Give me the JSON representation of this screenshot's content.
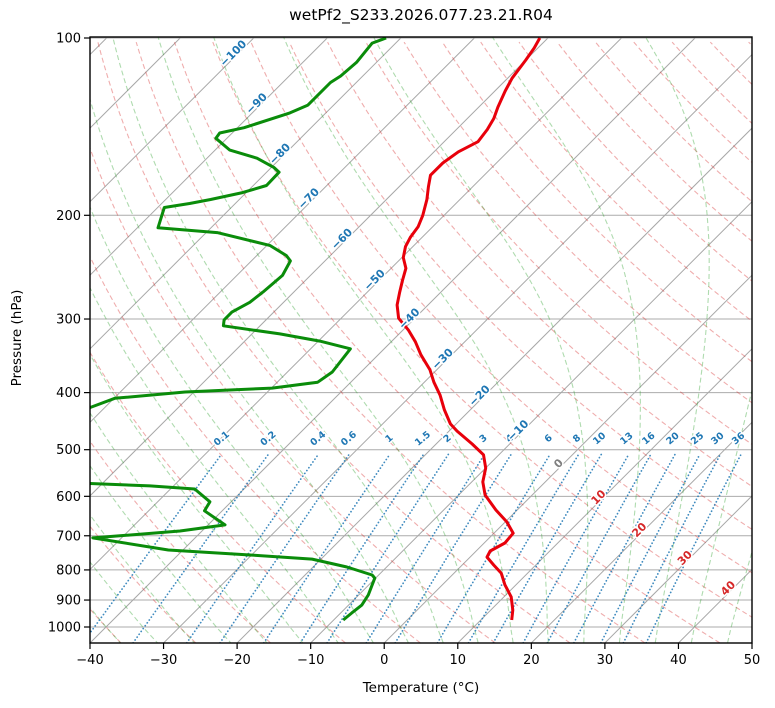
{
  "title": "wetPf2_S233.2026.077.23.21.R04",
  "axes": {
    "x_label": "Temperature (°C)",
    "y_label": "Pressure (hPa)",
    "x_ticks": [
      -40,
      -30,
      -20,
      -10,
      0,
      10,
      20,
      30,
      40,
      50
    ],
    "y_ticks": [
      100,
      200,
      300,
      400,
      500,
      600,
      700,
      800,
      900,
      1000
    ]
  },
  "colors": {
    "temperature_line": "#e8000b",
    "dewpoint_line": "#0a8c0a",
    "isotherm": "#a8a8a8",
    "pressure_grid": "#ababab",
    "dry_adiabat": "rgba(214,39,40,0.38)",
    "moist_adiabat": "rgba(44,160,44,0.38)",
    "mixing_ratio": "rgba(31,119,180,0.85)",
    "label_negative": "#1f77b4",
    "label_zero": "#7f7f7f",
    "label_positive": "#d62728",
    "spine": "#000000"
  },
  "chart_data": {
    "type": "skewt-logp",
    "skew_deg": 45,
    "pressure_range_hpa": [
      100,
      1064
    ],
    "temperature_range_c": [
      -40,
      50
    ],
    "isotherms_c": {
      "start": -160,
      "end": 50,
      "step": 10
    },
    "dry_adiabats_theta_c": {
      "start": -40,
      "end": 200,
      "step": 10
    },
    "moist_adiabats_t0_c": {
      "start": -40,
      "end": 45,
      "step": 5
    },
    "mixing_ratio_g_kg": [
      0.1,
      0.2,
      0.4,
      0.6,
      1,
      1.5,
      2,
      3,
      4,
      6,
      8,
      10,
      13,
      16,
      20,
      25,
      30,
      36
    ],
    "mixing_ratio_label_pressure": 483,
    "isotherm_labels": [
      {
        "t": -100,
        "p": 106
      },
      {
        "t": -90,
        "p": 129
      },
      {
        "t": -80,
        "p": 157
      },
      {
        "t": -70,
        "p": 187
      },
      {
        "t": -60,
        "p": 219
      },
      {
        "t": -50,
        "p": 257
      },
      {
        "t": -40,
        "p": 299
      },
      {
        "t": -30,
        "p": 350
      },
      {
        "t": -20,
        "p": 404
      },
      {
        "t": -10,
        "p": 463
      },
      {
        "t": 0,
        "p": 527
      },
      {
        "t": 10,
        "p": 601
      },
      {
        "t": 20,
        "p": 683
      },
      {
        "t": 30,
        "p": 762
      },
      {
        "t": 40,
        "p": 858
      }
    ],
    "temperature_profile_p_t": [
      [
        100,
        -61.1
      ],
      [
        104,
        -60.5
      ],
      [
        109,
        -60.0
      ],
      [
        117,
        -59.4
      ],
      [
        123,
        -58.6
      ],
      [
        131,
        -57.4
      ],
      [
        137,
        -56.4
      ],
      [
        143,
        -55.8
      ],
      [
        150,
        -55.4
      ],
      [
        156,
        -56.7
      ],
      [
        163,
        -57.3
      ],
      [
        171,
        -57.3
      ],
      [
        179,
        -56.0
      ],
      [
        188,
        -54.5
      ],
      [
        200,
        -52.9
      ],
      [
        209,
        -52.0
      ],
      [
        218,
        -51.6
      ],
      [
        226,
        -51.0
      ],
      [
        236,
        -49.8
      ],
      [
        246,
        -48.0
      ],
      [
        258,
        -46.8
      ],
      [
        270,
        -45.6
      ],
      [
        284,
        -44.2
      ],
      [
        299,
        -42.2
      ],
      [
        313,
        -39.3
      ],
      [
        328,
        -36.7
      ],
      [
        345,
        -34.2
      ],
      [
        366,
        -30.9
      ],
      [
        384,
        -28.7
      ],
      [
        404,
        -26.1
      ],
      [
        428,
        -23.5
      ],
      [
        452,
        -20.8
      ],
      [
        465,
        -18.9
      ],
      [
        489,
        -15.1
      ],
      [
        510,
        -12.1
      ],
      [
        537,
        -10.0
      ],
      [
        567,
        -8.5
      ],
      [
        597,
        -6.4
      ],
      [
        633,
        -2.9
      ],
      [
        663,
        0.2
      ],
      [
        693,
        2.6
      ],
      [
        720,
        2.8
      ],
      [
        743,
        1.9
      ],
      [
        761,
        2.3
      ],
      [
        785,
        4.3
      ],
      [
        810,
        6.4
      ],
      [
        848,
        8.5
      ],
      [
        889,
        11.0
      ],
      [
        936,
        13.0
      ],
      [
        973,
        14.2
      ]
    ],
    "dewpoint_profile_segments": [
      [
        [
          100,
          -82.0
        ],
        [
          102,
          -83.2
        ],
        [
          110,
          -82.7
        ],
        [
          116,
          -83.0
        ],
        [
          119,
          -83.5
        ],
        [
          130,
          -83.5
        ],
        [
          134,
          -84.9
        ],
        [
          142,
          -89.1
        ],
        [
          145,
          -91.7
        ],
        [
          148,
          -91.5
        ],
        [
          155,
          -88.0
        ],
        [
          160,
          -83.2
        ],
        [
          166,
          -79.6
        ],
        [
          169,
          -78.3
        ],
        [
          178,
          -78.2
        ],
        [
          183,
          -80.5
        ],
        [
          188,
          -83.9
        ],
        [
          191,
          -86.2
        ],
        [
          194,
          -89.1
        ],
        [
          210,
          -87.2
        ],
        [
          214,
          -78.5
        ],
        [
          225,
          -69.6
        ],
        [
          234,
          -66.0
        ],
        [
          239,
          -64.7
        ],
        [
          253,
          -63.8
        ],
        [
          270,
          -64.2
        ],
        [
          281,
          -64.6
        ],
        [
          292,
          -65.7
        ],
        [
          301,
          -65.7
        ],
        [
          308,
          -65.0
        ],
        [
          318,
          -56.2
        ],
        [
          327,
          -49.8
        ],
        [
          337,
          -44.6
        ],
        [
          369,
          -43.9
        ],
        [
          384,
          -44.5
        ],
        [
          393,
          -49.9
        ],
        [
          399,
          -61.2
        ],
        [
          409,
          -69.9
        ],
        [
          430,
          -72.8
        ]
      ],
      [
        [
          570,
          -62.6
        ],
        [
          576,
          -53.2
        ],
        [
          583,
          -46.7
        ],
        [
          613,
          -42.9
        ],
        [
          635,
          -42.4
        ],
        [
          671,
          -37.7
        ],
        [
          687,
          -43.0
        ],
        [
          700,
          -50.5
        ],
        [
          706,
          -53.9
        ],
        [
          740,
          -42.0
        ],
        [
          755,
          -29.9
        ],
        [
          767,
          -21.2
        ],
        [
          791,
          -15.4
        ],
        [
          816,
          -10.9
        ],
        [
          826,
          -10.1
        ],
        [
          882,
          -8.7
        ],
        [
          918,
          -8.2
        ],
        [
          947,
          -8.5
        ],
        [
          973,
          -8.7
        ]
      ]
    ]
  }
}
